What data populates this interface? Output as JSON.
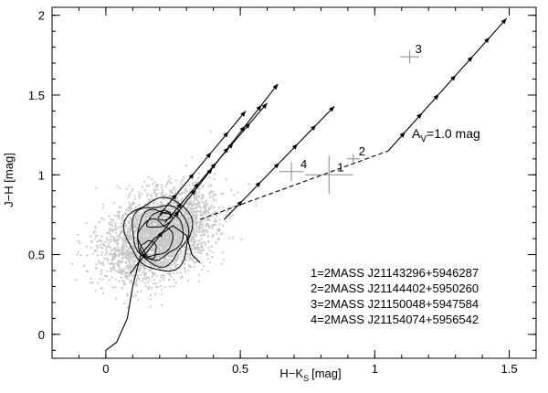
{
  "chart_data": {
    "type": "scatter",
    "title": "",
    "xlabel": "H−K",
    "xlabel_sub": "S",
    "xlabel_unit": "[mag]",
    "ylabel": "J−H [mag]",
    "xlim": [
      -0.2,
      1.6
    ],
    "ylim": [
      -0.15,
      2.05
    ],
    "xticks": [
      0,
      0.5,
      1,
      1.5
    ],
    "xtick_labels": [
      "0",
      "0.5",
      "1",
      "1.5"
    ],
    "yticks": [
      0,
      0.5,
      1,
      1.5,
      2
    ],
    "ytick_labels": [
      "0",
      "0.5",
      "1",
      "1.5",
      "2"
    ],
    "grid": false,
    "background_field": {
      "center": [
        0.2,
        0.62
      ],
      "spread": [
        0.1,
        0.13
      ],
      "count": 3200,
      "color": "#c8c8c8"
    },
    "contours": [
      {
        "center": [
          0.2,
          0.63
        ],
        "rx": 0.13,
        "ry": 0.24
      },
      {
        "center": [
          0.2,
          0.63
        ],
        "rx": 0.11,
        "ry": 0.2
      },
      {
        "center": [
          0.2,
          0.63
        ],
        "rx": 0.09,
        "ry": 0.16
      },
      {
        "center": [
          0.18,
          0.6
        ],
        "rx": 0.07,
        "ry": 0.12
      },
      {
        "center": [
          0.2,
          0.72
        ],
        "rx": 0.05,
        "ry": 0.05
      },
      {
        "center": [
          0.22,
          0.74
        ],
        "rx": 0.025,
        "ry": 0.025
      },
      {
        "center": [
          0.16,
          0.53
        ],
        "rx": 0.03,
        "ry": 0.06
      }
    ],
    "intrinsic_locus": [
      [
        0,
        -0.1
      ],
      [
        0.04,
        -0.05
      ],
      [
        0.08,
        0.1
      ],
      [
        0.1,
        0.3
      ],
      [
        0.13,
        0.5
      ],
      [
        0.18,
        0.6
      ],
      [
        0.25,
        0.68
      ],
      [
        0.3,
        0.62
      ],
      [
        0.32,
        0.5
      ],
      [
        0.35,
        0.45
      ]
    ],
    "ctts_locus": [
      [
        0.35,
        0.72
      ],
      [
        1.05,
        1.15
      ]
    ],
    "reddening_vectors": [
      {
        "start": [
          0.09,
          0.38
        ],
        "end": [
          0.64,
          1.57
        ],
        "arrows": 9
      },
      {
        "start": [
          0.2,
          0.75
        ],
        "end": [
          0.52,
          1.4
        ],
        "arrows": 5
      },
      {
        "start": [
          0.22,
          0.7
        ],
        "end": [
          0.6,
          1.45
        ],
        "arrows": 6
      },
      {
        "start": [
          0.44,
          0.72
        ],
        "end": [
          0.85,
          1.43
        ],
        "arrows": 6
      },
      {
        "start": [
          1.05,
          1.15
        ],
        "end": [
          1.49,
          1.98
        ],
        "arrows": 7
      }
    ],
    "av_label": "A",
    "av_sub": "V",
    "av_text": "=1.0 mag",
    "sources": [
      {
        "id": "1",
        "x": 0.83,
        "y": 1.0,
        "xerr": 0.09,
        "yerr": 0.12
      },
      {
        "id": "2",
        "x": 0.92,
        "y": 1.1,
        "xerr": 0.025,
        "yerr": 0.03
      },
      {
        "id": "3",
        "x": 1.13,
        "y": 1.74,
        "xerr": 0.035,
        "yerr": 0.04
      },
      {
        "id": "4",
        "x": 0.69,
        "y": 1.02,
        "xerr": 0.045,
        "yerr": 0.06
      }
    ],
    "legend_entries": [
      "1=2MASS J21143296+5946287",
      "2=2MASS J21144402+5950260",
      "3=2MASS J21150048+5947584",
      "4=2MASS J21154074+5956542"
    ]
  }
}
